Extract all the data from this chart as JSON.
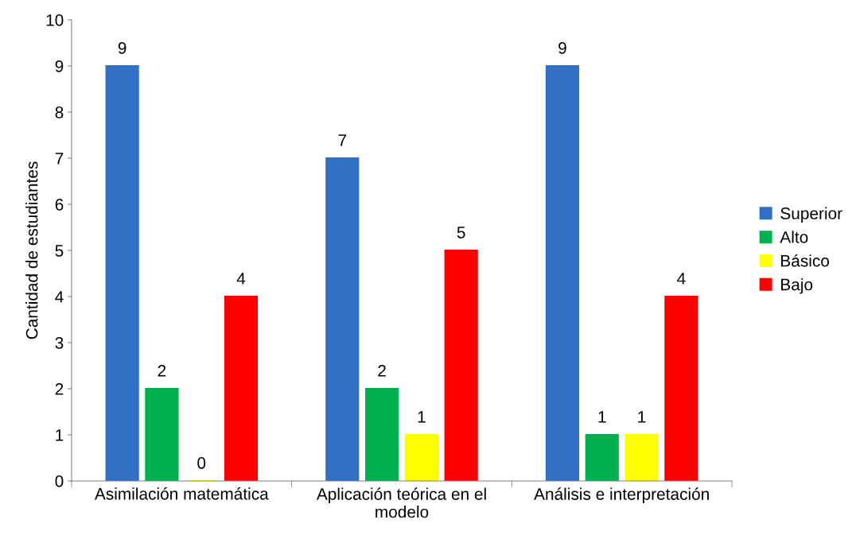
{
  "chart_data": {
    "type": "bar",
    "ylabel": "Cantidad de estudiantes",
    "categories": [
      "Asimilación matemática",
      "Aplicación teórica en el\nmodelo",
      "Análisis e interpretación"
    ],
    "series": [
      {
        "name": "Superior",
        "color": "#3170c5",
        "values": [
          9,
          7,
          9
        ]
      },
      {
        "name": "Alto",
        "color": "#00b050",
        "values": [
          2,
          2,
          1
        ]
      },
      {
        "name": "Básico",
        "color": "#ffff00",
        "values": [
          0,
          1,
          1
        ]
      },
      {
        "name": "Bajo",
        "color": "#ff0000",
        "values": [
          4,
          5,
          4
        ]
      }
    ],
    "ylim": [
      0,
      10
    ],
    "yticks": [
      0,
      1,
      2,
      3,
      4,
      5,
      6,
      7,
      8,
      9,
      10
    ],
    "data_labels": true,
    "grid": false,
    "legend": "right"
  }
}
